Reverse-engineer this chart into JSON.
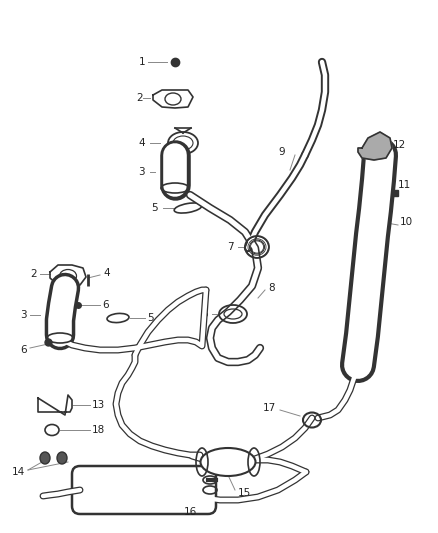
{
  "bg_color": "#ffffff",
  "fig_width": 4.38,
  "fig_height": 5.33,
  "dpi": 100,
  "pipe_color": "#333333",
  "label_color": "#222222",
  "line_color": "#888888",
  "pipe_lw_outer": 5.0,
  "pipe_lw_inner": 3.2,
  "label_fontsize": 7.5
}
